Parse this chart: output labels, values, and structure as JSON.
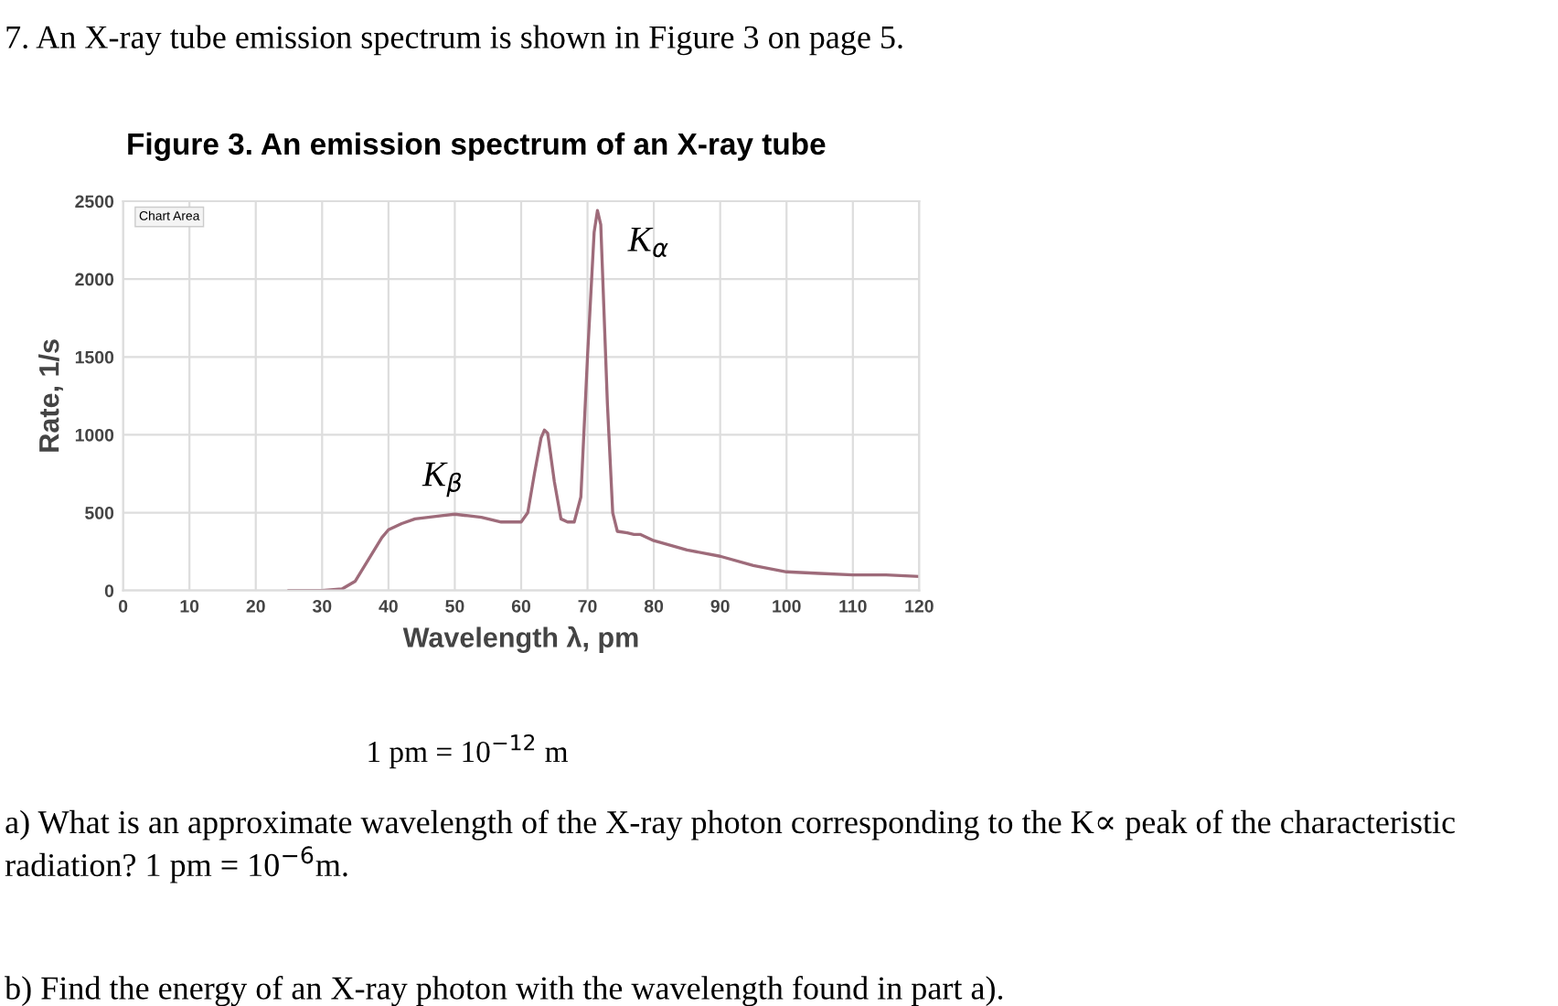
{
  "chart_data": {
    "type": "line",
    "title": "Figure 3. An emission spectrum of an X-ray tube",
    "xlabel": "Wavelength λ, pm",
    "ylabel": "Rate, 1/s",
    "series": [
      {
        "color": "#9e6b7a",
        "x": [
          25,
          30,
          33,
          35,
          37,
          39,
          40,
          42,
          44,
          46,
          48,
          50,
          52,
          54,
          56,
          57,
          59,
          60,
          61,
          62,
          63,
          63.5,
          64,
          65,
          66,
          67,
          68,
          69,
          70,
          71,
          71.5,
          72,
          73,
          73.8,
          74.5,
          76,
          77,
          78,
          80,
          85,
          90,
          95,
          100,
          105,
          110,
          115,
          120
        ],
        "values": [
          0,
          0,
          10,
          60,
          200,
          340,
          390,
          430,
          460,
          470,
          480,
          490,
          480,
          470,
          450,
          440,
          440,
          440,
          500,
          750,
          980,
          1030,
          1010,
          700,
          460,
          440,
          440,
          600,
          1500,
          2300,
          2440,
          2350,
          1200,
          500,
          380,
          370,
          360,
          360,
          320,
          260,
          220,
          160,
          120,
          110,
          100,
          100,
          90
        ]
      }
    ],
    "xlim": [
      0,
      120
    ],
    "xticks": [
      0,
      10,
      20,
      30,
      40,
      50,
      60,
      70,
      80,
      90,
      100,
      110,
      120
    ],
    "ylim": [
      0,
      2500
    ],
    "yticks": [
      0,
      500,
      1000,
      1500,
      2000,
      2500
    ],
    "grid": true,
    "marker": "none",
    "line_style": "solid",
    "legend": false,
    "annotations": [
      "7. An X-ray tube emission spectrum is shown in Figure 3 on page 5.",
      "Chart Area",
      {
        "text": "K$_{α}$",
        "x": 71.5,
        "y": 2440
      },
      {
        "text": "K$_{β}$",
        "x": 63.5,
        "y": 1030
      },
      "1 pm = 10$^{−12}$ m",
      "a) What is an approximate wavelength of the X-ray photon corresponding to the K∝ peak of the characteristic radiation? 1 pm = 10$^{−6}$m.",
      "b) Find the energy of an X-ray photon with the wavelength found in part a)."
    ]
  }
}
